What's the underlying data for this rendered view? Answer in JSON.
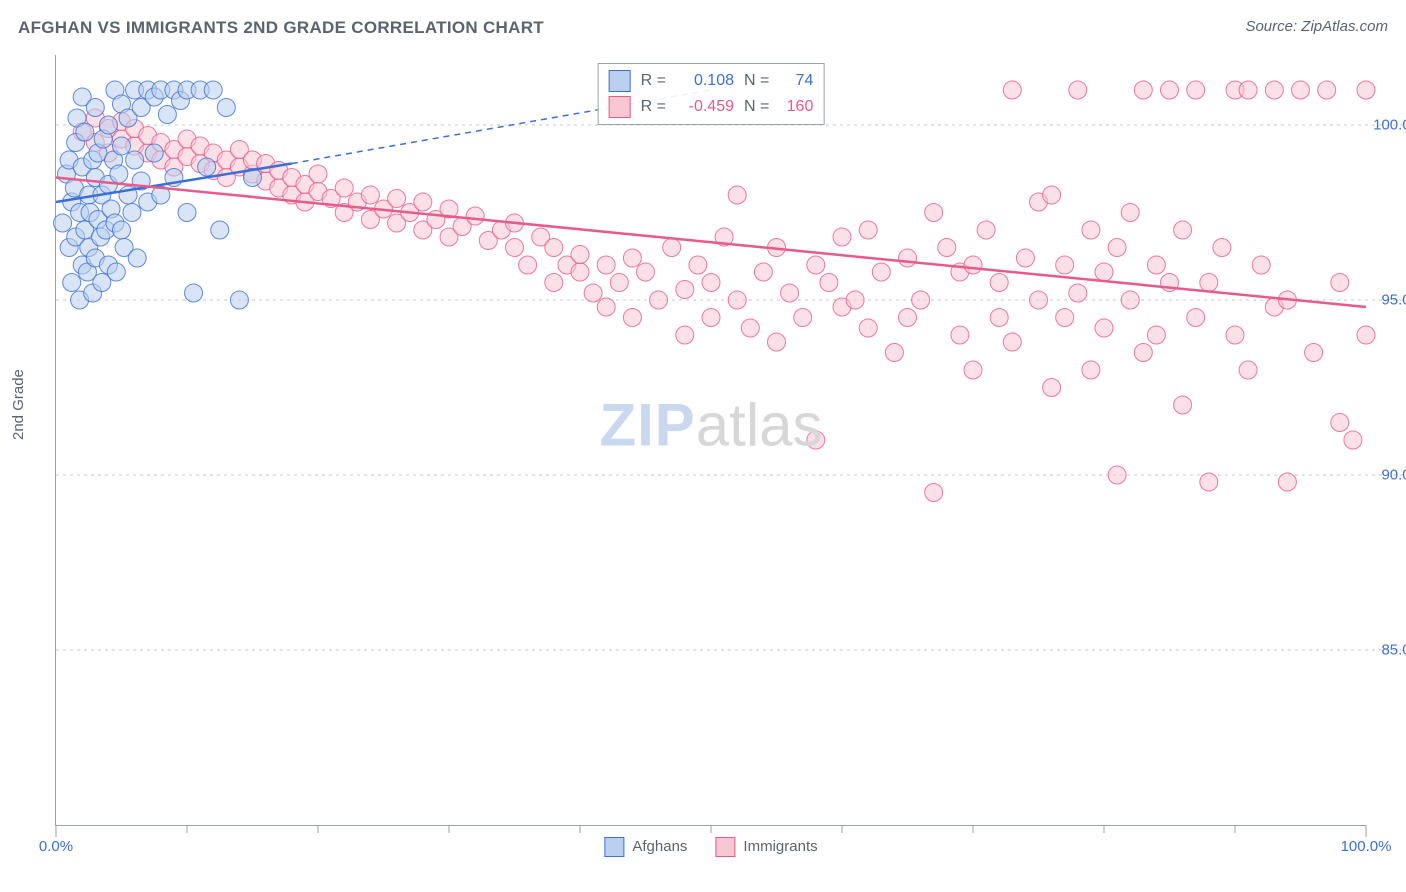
{
  "title": "AFGHAN VS IMMIGRANTS 2ND GRADE CORRELATION CHART",
  "source": "Source: ZipAtlas.com",
  "ylabel": "2nd Grade",
  "watermark_a": "ZIP",
  "watermark_b": "atlas",
  "chart": {
    "type": "scatter",
    "xlim": [
      0,
      100
    ],
    "ylim": [
      80,
      102
    ],
    "yticks": [
      85,
      90,
      95,
      100
    ],
    "xticks_major": [
      0,
      100
    ],
    "xticks_minor": [
      10,
      20,
      30,
      40,
      50,
      60,
      70,
      80,
      90
    ],
    "colors": {
      "blue_fill": "#b9d0f0",
      "blue_stroke": "#3b6fd6",
      "pink_fill": "#f7c7d4",
      "pink_stroke": "#e85a8a",
      "grid": "#c7c7c7",
      "axis": "#9aa2ad",
      "text": "#5a6470",
      "tick_label": "#3b6fd6"
    },
    "marker_radius": 9,
    "marker_opacity": 0.55,
    "line_width": 2.5,
    "series": [
      {
        "key": "afghans",
        "label": "Afghans",
        "color_fill": "#b9d0f0",
        "color_stroke": "#3b6fd6",
        "R": "0.108",
        "N": "74",
        "trend_solid": {
          "x1": 0,
          "y1": 97.8,
          "x2": 18,
          "y2": 98.9
        },
        "trend_dashed": {
          "x1": 18,
          "y1": 98.9,
          "x2": 50,
          "y2": 101.0
        },
        "points": [
          [
            0.5,
            97.2
          ],
          [
            0.8,
            98.6
          ],
          [
            1.0,
            96.5
          ],
          [
            1.0,
            99.0
          ],
          [
            1.2,
            95.5
          ],
          [
            1.2,
            97.8
          ],
          [
            1.4,
            98.2
          ],
          [
            1.5,
            96.8
          ],
          [
            1.5,
            99.5
          ],
          [
            1.6,
            100.2
          ],
          [
            1.8,
            95.0
          ],
          [
            1.8,
            97.5
          ],
          [
            2.0,
            96.0
          ],
          [
            2.0,
            98.8
          ],
          [
            2.0,
            100.8
          ],
          [
            2.2,
            97.0
          ],
          [
            2.2,
            99.8
          ],
          [
            2.4,
            95.8
          ],
          [
            2.5,
            98.0
          ],
          [
            2.5,
            96.5
          ],
          [
            2.6,
            97.5
          ],
          [
            2.8,
            99.0
          ],
          [
            2.8,
            95.2
          ],
          [
            3.0,
            98.5
          ],
          [
            3.0,
            100.5
          ],
          [
            3.0,
            96.2
          ],
          [
            3.2,
            97.3
          ],
          [
            3.2,
            99.2
          ],
          [
            3.4,
            96.8
          ],
          [
            3.5,
            98.0
          ],
          [
            3.5,
            95.5
          ],
          [
            3.6,
            99.6
          ],
          [
            3.8,
            97.0
          ],
          [
            4.0,
            98.3
          ],
          [
            4.0,
            100.0
          ],
          [
            4.0,
            96.0
          ],
          [
            4.2,
            97.6
          ],
          [
            4.4,
            99.0
          ],
          [
            4.5,
            101.0
          ],
          [
            4.5,
            97.2
          ],
          [
            4.6,
            95.8
          ],
          [
            4.8,
            98.6
          ],
          [
            5.0,
            97.0
          ],
          [
            5.0,
            99.4
          ],
          [
            5.0,
            100.6
          ],
          [
            5.2,
            96.5
          ],
          [
            5.5,
            98.0
          ],
          [
            5.5,
            100.2
          ],
          [
            5.8,
            97.5
          ],
          [
            6.0,
            99.0
          ],
          [
            6.0,
            101.0
          ],
          [
            6.2,
            96.2
          ],
          [
            6.5,
            98.4
          ],
          [
            6.5,
            100.5
          ],
          [
            7.0,
            101.0
          ],
          [
            7.0,
            97.8
          ],
          [
            7.5,
            99.2
          ],
          [
            7.5,
            100.8
          ],
          [
            8.0,
            101.0
          ],
          [
            8.0,
            98.0
          ],
          [
            8.5,
            100.3
          ],
          [
            9.0,
            101.0
          ],
          [
            9.0,
            98.5
          ],
          [
            9.5,
            100.7
          ],
          [
            10.0,
            101.0
          ],
          [
            10.0,
            97.5
          ],
          [
            10.5,
            95.2
          ],
          [
            11.0,
            101.0
          ],
          [
            11.5,
            98.8
          ],
          [
            12.0,
            101.0
          ],
          [
            12.5,
            97.0
          ],
          [
            13.0,
            100.5
          ],
          [
            14.0,
            95.0
          ],
          [
            15.0,
            98.5
          ]
        ]
      },
      {
        "key": "immigrants",
        "label": "Immigrants",
        "color_fill": "#f7c7d4",
        "color_stroke": "#e85a8a",
        "R": "-0.459",
        "N": "160",
        "trend_solid": {
          "x1": 0,
          "y1": 98.5,
          "x2": 100,
          "y2": 94.8
        },
        "trend_dashed": null,
        "points": [
          [
            2,
            99.8
          ],
          [
            3,
            99.5
          ],
          [
            3,
            100.2
          ],
          [
            4,
            99.2
          ],
          [
            4,
            99.9
          ],
          [
            5,
            99.6
          ],
          [
            5,
            100.1
          ],
          [
            6,
            99.4
          ],
          [
            6,
            99.9
          ],
          [
            7,
            99.2
          ],
          [
            7,
            99.7
          ],
          [
            8,
            99.5
          ],
          [
            8,
            99.0
          ],
          [
            9,
            99.3
          ],
          [
            9,
            98.8
          ],
          [
            10,
            99.1
          ],
          [
            10,
            99.6
          ],
          [
            11,
            98.9
          ],
          [
            11,
            99.4
          ],
          [
            12,
            99.2
          ],
          [
            12,
            98.7
          ],
          [
            13,
            98.5
          ],
          [
            13,
            99.0
          ],
          [
            14,
            98.8
          ],
          [
            14,
            99.3
          ],
          [
            15,
            98.6
          ],
          [
            15,
            99.0
          ],
          [
            16,
            98.4
          ],
          [
            16,
            98.9
          ],
          [
            17,
            98.7
          ],
          [
            17,
            98.2
          ],
          [
            18,
            98.5
          ],
          [
            18,
            98.0
          ],
          [
            19,
            98.3
          ],
          [
            19,
            97.8
          ],
          [
            20,
            98.1
          ],
          [
            20,
            98.6
          ],
          [
            21,
            97.9
          ],
          [
            22,
            98.2
          ],
          [
            22,
            97.5
          ],
          [
            23,
            97.8
          ],
          [
            24,
            98.0
          ],
          [
            24,
            97.3
          ],
          [
            25,
            97.6
          ],
          [
            26,
            97.9
          ],
          [
            26,
            97.2
          ],
          [
            27,
            97.5
          ],
          [
            28,
            97.8
          ],
          [
            28,
            97.0
          ],
          [
            29,
            97.3
          ],
          [
            30,
            97.6
          ],
          [
            30,
            96.8
          ],
          [
            31,
            97.1
          ],
          [
            32,
            97.4
          ],
          [
            33,
            96.7
          ],
          [
            34,
            97.0
          ],
          [
            35,
            96.5
          ],
          [
            35,
            97.2
          ],
          [
            36,
            96.0
          ],
          [
            37,
            96.8
          ],
          [
            38,
            95.5
          ],
          [
            38,
            96.5
          ],
          [
            39,
            96.0
          ],
          [
            40,
            95.8
          ],
          [
            40,
            96.3
          ],
          [
            41,
            95.2
          ],
          [
            42,
            96.0
          ],
          [
            42,
            94.8
          ],
          [
            43,
            95.5
          ],
          [
            44,
            96.2
          ],
          [
            44,
            94.5
          ],
          [
            45,
            95.8
          ],
          [
            46,
            95.0
          ],
          [
            47,
            96.5
          ],
          [
            48,
            95.3
          ],
          [
            48,
            94.0
          ],
          [
            49,
            96.0
          ],
          [
            50,
            95.5
          ],
          [
            50,
            94.5
          ],
          [
            51,
            96.8
          ],
          [
            52,
            95.0
          ],
          [
            52,
            98.0
          ],
          [
            53,
            94.2
          ],
          [
            54,
            95.8
          ],
          [
            55,
            96.5
          ],
          [
            55,
            93.8
          ],
          [
            56,
            95.2
          ],
          [
            57,
            94.5
          ],
          [
            58,
            96.0
          ],
          [
            58,
            91.0
          ],
          [
            59,
            95.5
          ],
          [
            60,
            94.8
          ],
          [
            60,
            96.8
          ],
          [
            61,
            95.0
          ],
          [
            62,
            94.2
          ],
          [
            62,
            97.0
          ],
          [
            63,
            95.8
          ],
          [
            64,
            93.5
          ],
          [
            65,
            96.2
          ],
          [
            65,
            94.5
          ],
          [
            66,
            95.0
          ],
          [
            67,
            97.5
          ],
          [
            67,
            89.5
          ],
          [
            68,
            96.5
          ],
          [
            69,
            94.0
          ],
          [
            69,
            95.8
          ],
          [
            70,
            93.0
          ],
          [
            70,
            96.0
          ],
          [
            71,
            97.0
          ],
          [
            72,
            94.5
          ],
          [
            72,
            95.5
          ],
          [
            73,
            101.0
          ],
          [
            73,
            93.8
          ],
          [
            74,
            96.2
          ],
          [
            75,
            95.0
          ],
          [
            75,
            97.8
          ],
          [
            76,
            92.5
          ],
          [
            76,
            98.0
          ],
          [
            77,
            94.5
          ],
          [
            77,
            96.0
          ],
          [
            78,
            95.2
          ],
          [
            78,
            101.0
          ],
          [
            79,
            93.0
          ],
          [
            79,
            97.0
          ],
          [
            80,
            95.8
          ],
          [
            80,
            94.2
          ],
          [
            81,
            96.5
          ],
          [
            81,
            90.0
          ],
          [
            82,
            95.0
          ],
          [
            82,
            97.5
          ],
          [
            83,
            101.0
          ],
          [
            83,
            93.5
          ],
          [
            84,
            96.0
          ],
          [
            84,
            94.0
          ],
          [
            85,
            95.5
          ],
          [
            85,
            101.0
          ],
          [
            86,
            92.0
          ],
          [
            86,
            97.0
          ],
          [
            87,
            94.5
          ],
          [
            87,
            101.0
          ],
          [
            88,
            95.5
          ],
          [
            88,
            89.8
          ],
          [
            89,
            96.5
          ],
          [
            90,
            94.0
          ],
          [
            90,
            101.0
          ],
          [
            91,
            101.0
          ],
          [
            91,
            93.0
          ],
          [
            92,
            96.0
          ],
          [
            93,
            94.8
          ],
          [
            93,
            101.0
          ],
          [
            94,
            89.8
          ],
          [
            94,
            95.0
          ],
          [
            95,
            101.0
          ],
          [
            96,
            93.5
          ],
          [
            97,
            101.0
          ],
          [
            98,
            91.5
          ],
          [
            98,
            95.5
          ],
          [
            99,
            91.0
          ],
          [
            100,
            101.0
          ],
          [
            100,
            94.0
          ]
        ]
      }
    ]
  }
}
